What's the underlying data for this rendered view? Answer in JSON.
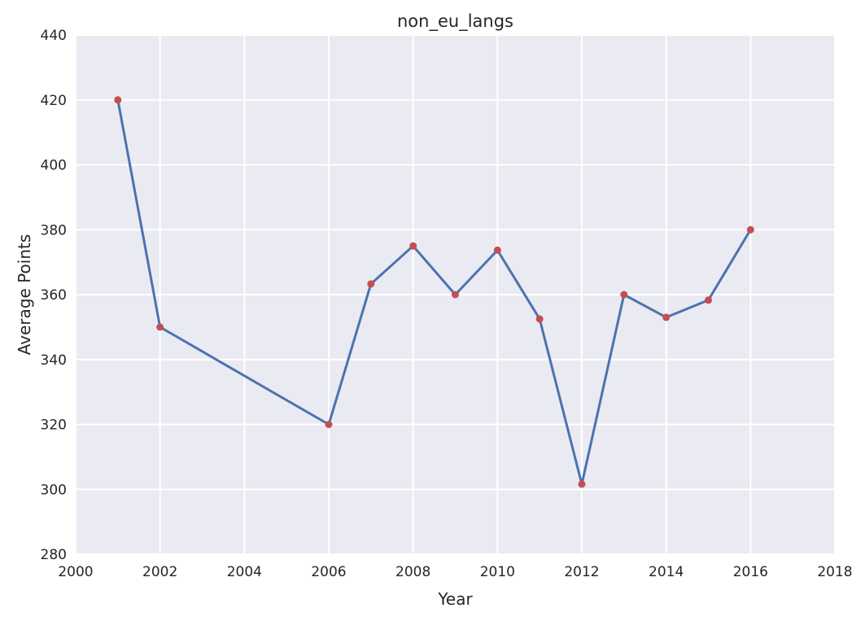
{
  "chart_data": {
    "type": "line",
    "title": "non_eu_langs",
    "xlabel": "Year",
    "ylabel": "Average Points",
    "xlim": [
      2000,
      2018
    ],
    "ylim": [
      280,
      440
    ],
    "xticks": [
      2000,
      2002,
      2004,
      2006,
      2008,
      2010,
      2012,
      2014,
      2016,
      2018
    ],
    "yticks": [
      280,
      300,
      320,
      340,
      360,
      380,
      400,
      420,
      440
    ],
    "grid": true,
    "series": [
      {
        "x": [
          2001,
          2002,
          2006,
          2007,
          2008,
          2009,
          2010,
          2011,
          2012,
          2013,
          2014,
          2015,
          2016
        ],
        "y": [
          420,
          350,
          320,
          363.3,
          375,
          360,
          373.7,
          352.5,
          301.6,
          360,
          353,
          358.3,
          380
        ],
        "line_color": "#4C72B0",
        "marker_color": "#C44E52"
      }
    ]
  }
}
